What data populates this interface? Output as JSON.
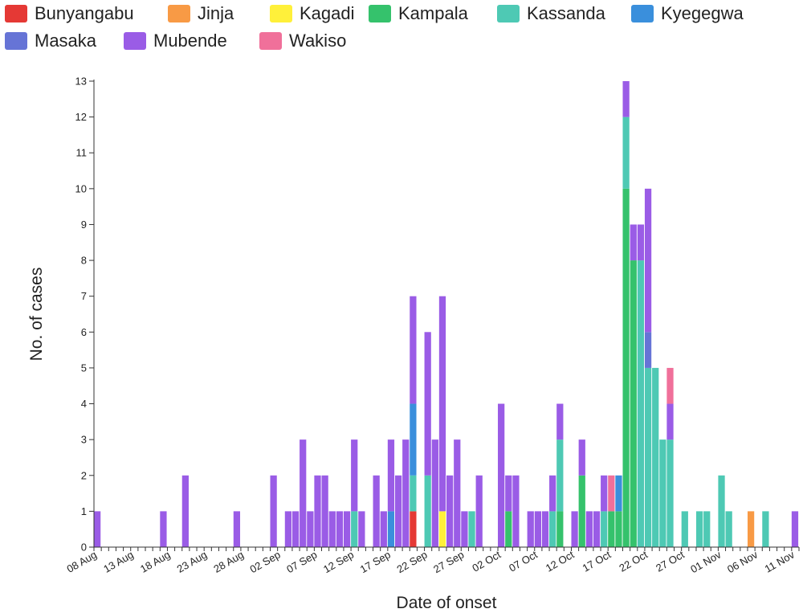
{
  "legend": [
    {
      "name": "Bunyangabu",
      "color": "#e53935"
    },
    {
      "name": "Jinja",
      "color": "#f89a45"
    },
    {
      "name": "Kagadi",
      "color": "#fff03a"
    },
    {
      "name": "Kampala",
      "color": "#35c26c"
    },
    {
      "name": "Kassanda",
      "color": "#4ec9b4"
    },
    {
      "name": "Kyegegwa",
      "color": "#3a8fdc"
    },
    {
      "name": "Masaka",
      "color": "#6674d6"
    },
    {
      "name": "Mubende",
      "color": "#9a5ce6"
    },
    {
      "name": "Wakiso",
      "color": "#f0709a"
    }
  ],
  "chart_data": {
    "type": "bar",
    "stacked": true,
    "xlabel": "Date of onset",
    "ylabel": "No. of cases",
    "ylim": [
      0,
      13
    ],
    "yticks": [
      0,
      1,
      2,
      3,
      4,
      5,
      6,
      7,
      8,
      9,
      10,
      11,
      12,
      13
    ],
    "grid": false,
    "legend_position": "top",
    "x_start": "2022-08-08",
    "x_end": "2022-11-11",
    "x_tick_labels": [
      "08 Aug",
      "13 Aug",
      "18 Aug",
      "23 Aug",
      "28 Aug",
      "02 Sep",
      "07 Sep",
      "12 Sep",
      "17 Sep",
      "22 Sep",
      "27 Sep",
      "02 Oct",
      "07 Oct",
      "12 Oct",
      "17 Oct",
      "22 Oct",
      "27 Oct",
      "01 Nov",
      "06 Nov",
      "11 Nov"
    ],
    "series": [
      {
        "name": "Bunyangabu",
        "points": [
          [
            "2022-09-20",
            1
          ]
        ]
      },
      {
        "name": "Jinja",
        "points": [
          [
            "2022-11-05",
            1
          ]
        ]
      },
      {
        "name": "Kagadi",
        "points": [
          [
            "2022-09-24",
            1
          ]
        ]
      },
      {
        "name": "Kampala",
        "points": [
          [
            "2022-10-03",
            1
          ],
          [
            "2022-10-10",
            1
          ],
          [
            "2022-10-13",
            2
          ],
          [
            "2022-10-17",
            1
          ],
          [
            "2022-10-18",
            1
          ],
          [
            "2022-10-19",
            10
          ],
          [
            "2022-10-20",
            8
          ]
        ]
      },
      {
        "name": "Kassanda",
        "points": [
          [
            "2022-09-12",
            1
          ],
          [
            "2022-09-20",
            1
          ],
          [
            "2022-09-22",
            2
          ],
          [
            "2022-09-28",
            1
          ],
          [
            "2022-10-09",
            1
          ],
          [
            "2022-10-10",
            2
          ],
          [
            "2022-10-16",
            1
          ],
          [
            "2022-10-19",
            2
          ],
          [
            "2022-10-20",
            0
          ],
          [
            "2022-10-21",
            8
          ],
          [
            "2022-10-22",
            5
          ],
          [
            "2022-10-23",
            5
          ],
          [
            "2022-10-24",
            3
          ],
          [
            "2022-10-25",
            3
          ],
          [
            "2022-10-27",
            1
          ],
          [
            "2022-10-29",
            1
          ],
          [
            "2022-10-30",
            1
          ],
          [
            "2022-11-01",
            2
          ],
          [
            "2022-11-02",
            1
          ],
          [
            "2022-11-07",
            1
          ]
        ]
      },
      {
        "name": "Kyegegwa",
        "points": [
          [
            "2022-09-17",
            1
          ],
          [
            "2022-09-20",
            2
          ],
          [
            "2022-10-18",
            1
          ]
        ]
      },
      {
        "name": "Masaka",
        "points": [
          [
            "2022-10-22",
            1
          ]
        ]
      },
      {
        "name": "Mubende",
        "points": [
          [
            "2022-08-08",
            1
          ],
          [
            "2022-08-17",
            1
          ],
          [
            "2022-08-20",
            2
          ],
          [
            "2022-08-27",
            1
          ],
          [
            "2022-09-01",
            2
          ],
          [
            "2022-09-03",
            1
          ],
          [
            "2022-09-04",
            1
          ],
          [
            "2022-09-05",
            3
          ],
          [
            "2022-09-06",
            1
          ],
          [
            "2022-09-07",
            2
          ],
          [
            "2022-09-08",
            2
          ],
          [
            "2022-09-09",
            1
          ],
          [
            "2022-09-10",
            1
          ],
          [
            "2022-09-11",
            1
          ],
          [
            "2022-09-12",
            2
          ],
          [
            "2022-09-13",
            1
          ],
          [
            "2022-09-15",
            2
          ],
          [
            "2022-09-16",
            1
          ],
          [
            "2022-09-17",
            2
          ],
          [
            "2022-09-18",
            2
          ],
          [
            "2022-09-19",
            3
          ],
          [
            "2022-09-20",
            3
          ],
          [
            "2022-09-22",
            4
          ],
          [
            "2022-09-23",
            3
          ],
          [
            "2022-09-24",
            6
          ],
          [
            "2022-09-25",
            2
          ],
          [
            "2022-09-26",
            3
          ],
          [
            "2022-09-27",
            1
          ],
          [
            "2022-09-29",
            2
          ],
          [
            "2022-10-02",
            4
          ],
          [
            "2022-10-03",
            1
          ],
          [
            "2022-10-04",
            2
          ],
          [
            "2022-10-06",
            1
          ],
          [
            "2022-10-07",
            1
          ],
          [
            "2022-10-08",
            1
          ],
          [
            "2022-10-09",
            1
          ],
          [
            "2022-10-10",
            1
          ],
          [
            "2022-10-12",
            1
          ],
          [
            "2022-10-13",
            1
          ],
          [
            "2022-10-14",
            1
          ],
          [
            "2022-10-15",
            1
          ],
          [
            "2022-10-16",
            1
          ],
          [
            "2022-10-19",
            1
          ],
          [
            "2022-10-20",
            1
          ],
          [
            "2022-10-21",
            1
          ],
          [
            "2022-10-22",
            4
          ],
          [
            "2022-10-25",
            1
          ],
          [
            "2022-11-11",
            1
          ]
        ]
      },
      {
        "name": "Wakiso",
        "points": [
          [
            "2022-10-17",
            1
          ],
          [
            "2022-10-25",
            1
          ]
        ]
      }
    ]
  }
}
